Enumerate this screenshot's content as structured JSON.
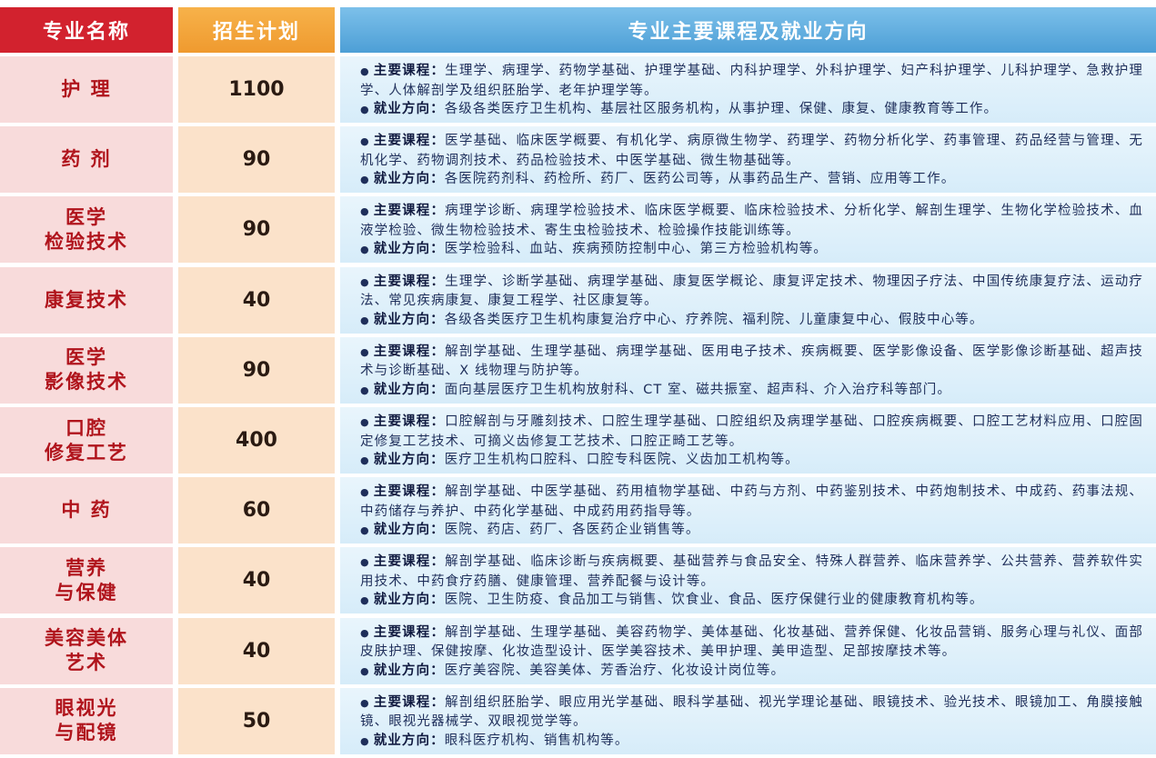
{
  "table": {
    "header": [
      "专业名称",
      "招生计划",
      "专业主要课程及就业方向"
    ],
    "rows": [
      {
        "name": [
          "护 理"
        ],
        "plan": 1100,
        "courses_label": "主要课程：",
        "courses": "生理学、病理学、药物学基础、护理学基础、内科护理学、外科护理学、妇产科护理学、儿科护理学、急救护理学、人体解剖学及组织胚胎学、老年护理学等。",
        "jobs_label": "就业方向：",
        "jobs": "各级各类医疗卫生机构、基层社区服务机构，从事护理、保健、康复、健康教育等工作。"
      },
      {
        "name": [
          "药 剂"
        ],
        "plan": 90,
        "courses_label": "主要课程：",
        "courses": "医学基础、临床医学概要、有机化学、病原微生物学、药理学、药物分析化学、药事管理、药品经营与管理、无机化学、药物调剂技术、药品检验技术、中医学基础、微生物基础等。",
        "jobs_label": "就业方向：",
        "jobs": "各医院药剂科、药检所、药厂、医药公司等，从事药品生产、营销、应用等工作。"
      },
      {
        "name": [
          "医学",
          "检验技术"
        ],
        "plan": 90,
        "courses_label": "主要课程：",
        "courses": "病理学诊断、病理学检验技术、临床医学概要、临床检验技术、分析化学、解剖生理学、生物化学检验技术、血液学检验、微生物检验技术、寄生虫检验技术、检验操作技能训练等。",
        "jobs_label": "就业方向：",
        "jobs": "医学检验科、血站、疾病预防控制中心、第三方检验机构等。"
      },
      {
        "name": [
          "康复技术"
        ],
        "plan": 40,
        "courses_label": "主要课程：",
        "courses": "生理学、诊断学基础、病理学基础、康复医学概论、康复评定技术、物理因子疗法、中国传统康复疗法、运动疗法、常见疾病康复、康复工程学、社区康复等。",
        "jobs_label": "就业方向：",
        "jobs": "各级各类医疗卫生机构康复治疗中心、疗养院、福利院、儿童康复中心、假肢中心等。"
      },
      {
        "name": [
          "医学",
          "影像技术"
        ],
        "plan": 90,
        "courses_label": "主要课程：",
        "courses": "解剖学基础、生理学基础、病理学基础、医用电子技术、疾病概要、医学影像设备、医学影像诊断基础、超声技术与诊断基础、X 线物理与防护等。",
        "jobs_label": "就业方向：",
        "jobs": "面向基层医疗卫生机构放射科、CT 室、磁共振室、超声科、介入治疗科等部门。"
      },
      {
        "name": [
          "口腔",
          "修复工艺"
        ],
        "plan": 400,
        "courses_label": "主要课程：",
        "courses": "口腔解剖与牙雕刻技术、口腔生理学基础、口腔组织及病理学基础、口腔疾病概要、口腔工艺材料应用、口腔固定修复工艺技术、可摘义齿修复工艺技术、口腔正畸工艺等。",
        "jobs_label": "就业方向：",
        "jobs": "医疗卫生机构口腔科、口腔专科医院、义齿加工机构等。"
      },
      {
        "name": [
          "中 药"
        ],
        "plan": 60,
        "courses_label": "主要课程：",
        "courses": "解剖学基础、中医学基础、药用植物学基础、中药与方剂、中药鉴别技术、中药炮制技术、中成药、药事法规、中药储存与养护、中药化学基础、中成药用药指导等。",
        "jobs_label": "就业方向：",
        "jobs": "医院、药店、药厂、各医药企业销售等。"
      },
      {
        "name": [
          "营养",
          "与保健"
        ],
        "plan": 40,
        "courses_label": "主要课程：",
        "courses": "解剖学基础、临床诊断与疾病概要、基础营养与食品安全、特殊人群营养、临床营养学、公共营养、营养软件实用技术、中药食疗药膳、健康管理、营养配餐与设计等。",
        "jobs_label": "就业方向：",
        "jobs": "医院、卫生防疫、食品加工与销售、饮食业、食品、医疗保健行业的健康教育机构等。"
      },
      {
        "name": [
          "美容美体",
          "艺术"
        ],
        "plan": 40,
        "courses_label": "主要课程：",
        "courses": "解剖学基础、生理学基础、美容药物学、美体基础、化妆基础、营养保健、化妆品营销、服务心理与礼仪、面部皮肤护理、保健按摩、化妆造型设计、医学美容技术、美甲护理、美甲造型、足部按摩技术等。",
        "jobs_label": "就业方向：",
        "jobs": "医疗美容院、美容美体、芳香治疗、化妆设计岗位等。"
      },
      {
        "name": [
          "眼视光",
          "与配镜"
        ],
        "plan": 50,
        "courses_label": "主要课程：",
        "courses": "解剖组织胚胎学、眼应用光学基础、眼科学基础、视光学理论基础、眼镜技术、验光技术、眼镜加工、角膜接触镜、眼视光器械学、双眼视觉学等。",
        "jobs_label": "就业方向：",
        "jobs": "眼科医疗机构、销售机构等。"
      }
    ]
  }
}
